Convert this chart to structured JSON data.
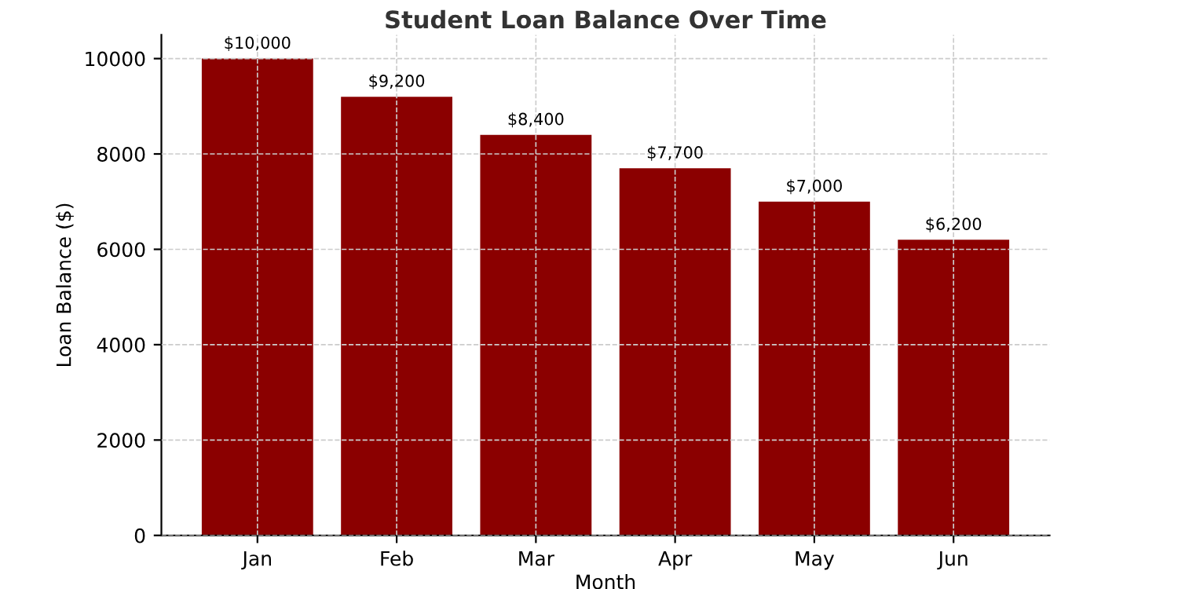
{
  "chart_data": {
    "type": "bar",
    "title": "Student Loan Balance Over Time",
    "xlabel": "Month",
    "ylabel": "Loan Balance ($)",
    "categories": [
      "Jan",
      "Feb",
      "Mar",
      "Apr",
      "May",
      "Jun"
    ],
    "values": [
      10000,
      9200,
      8400,
      7700,
      7000,
      6200
    ],
    "value_labels": [
      "$10,000",
      "$9,200",
      "$8,400",
      "$7,700",
      "$7,000",
      "$6,200"
    ],
    "color": "#8b0000",
    "ylim": [
      0,
      10500
    ],
    "yticks": [
      0,
      2000,
      4000,
      6000,
      8000,
      10000
    ],
    "grid": true
  }
}
